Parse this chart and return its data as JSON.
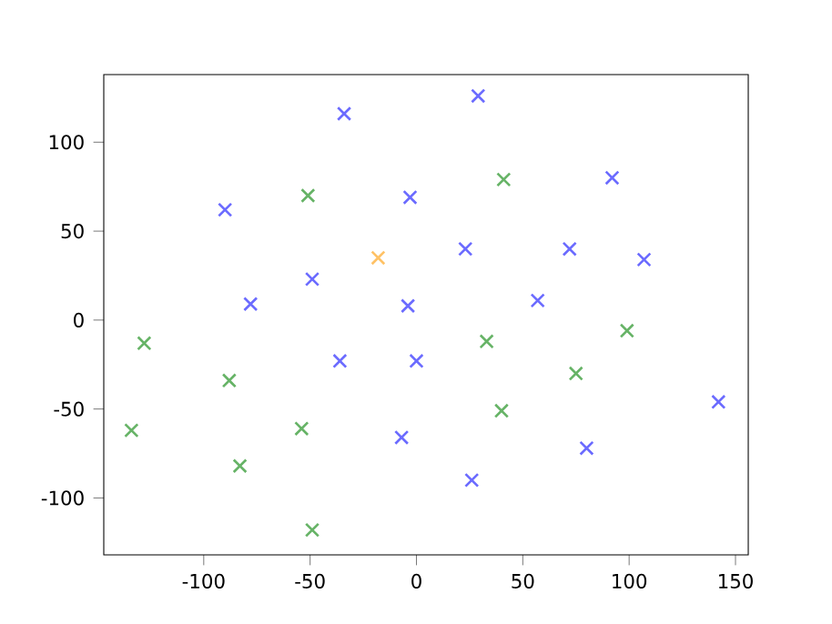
{
  "chart_data": {
    "type": "scatter",
    "marker": "cross",
    "xlim": [
      -147,
      156
    ],
    "ylim": [
      -132,
      138
    ],
    "xticks": [
      -100,
      -50,
      0,
      50,
      100,
      150
    ],
    "yticks": [
      -100,
      -50,
      0,
      50,
      100
    ],
    "grid": false,
    "series": [
      {
        "color": "#6b6bff",
        "x": [
          -34,
          29,
          -90,
          -3,
          92,
          23,
          72,
          107,
          -49,
          -78,
          -4,
          57,
          -36,
          0,
          -7,
          26,
          80,
          142
        ],
        "values": [
          116,
          126,
          62,
          69,
          80,
          40,
          40,
          34,
          23,
          9,
          8,
          11,
          -23,
          -23,
          -66,
          -90,
          -72,
          -46
        ]
      },
      {
        "color": "#66b366",
        "x": [
          -51,
          41,
          -128,
          -88,
          99,
          33,
          75,
          40,
          -134,
          -54,
          -83,
          -49
        ],
        "values": [
          70,
          79,
          -13,
          -34,
          -6,
          -12,
          -30,
          -51,
          -62,
          -61,
          -82,
          -118
        ]
      },
      {
        "color": "#ffc266",
        "x": [
          -18
        ],
        "values": [
          35
        ]
      }
    ]
  }
}
